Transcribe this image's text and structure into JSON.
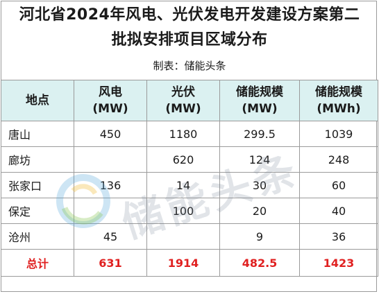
{
  "title": {
    "line1": "河北省2024年风电、光伏发电开发建设方案第二",
    "line2": "批拟安排项目区域分布"
  },
  "maker": "制表：储能头条",
  "table": {
    "headers": [
      {
        "line1": "地点",
        "line2": ""
      },
      {
        "line1": "风电",
        "line2": "(MW)"
      },
      {
        "line1": "光伏",
        "line2": "(MW)"
      },
      {
        "line1": "储能规模",
        "line2": "(MW)"
      },
      {
        "line1": "储能规模",
        "line2": "(MWh)"
      }
    ],
    "rows": [
      [
        "唐山",
        "450",
        "1180",
        "299.5",
        "1039"
      ],
      [
        "廊坊",
        "",
        "620",
        "124",
        "248"
      ],
      [
        "张家口",
        "136",
        "14",
        "30",
        "60"
      ],
      [
        "保定",
        "",
        "100",
        "20",
        "40"
      ],
      [
        "沧州",
        "45",
        "",
        "9",
        "36"
      ]
    ],
    "total": [
      "总计",
      "631",
      "1914",
      "482.5",
      "1423"
    ]
  },
  "watermark": {
    "text": "储能头条",
    "logo": "energy-storage-logo-icon"
  },
  "colors": {
    "header_bg": "#dbf1f1",
    "total_text": "#e02020",
    "border": "#9a9a9a"
  }
}
